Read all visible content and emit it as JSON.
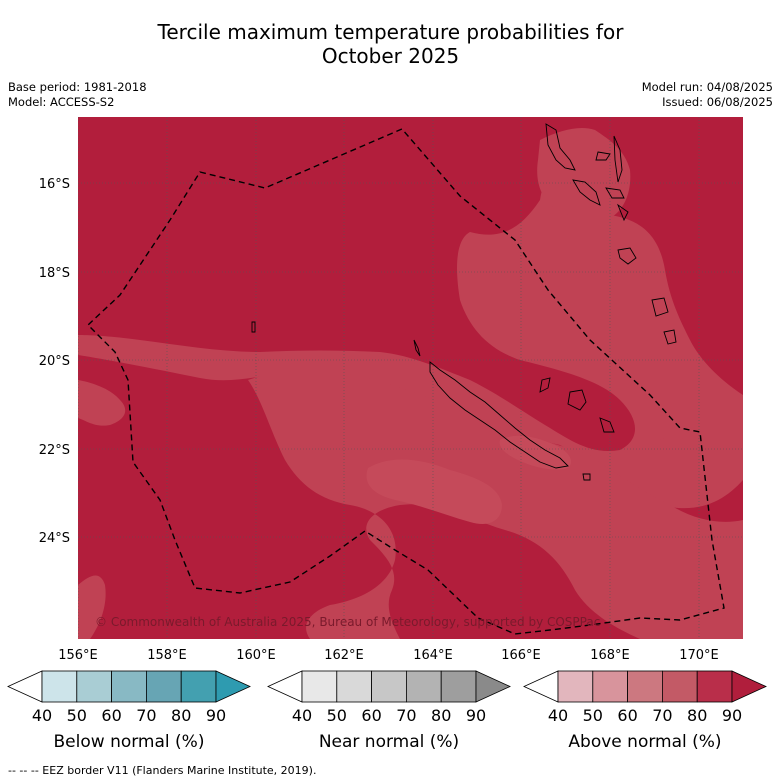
{
  "title_line1": "Tercile maximum temperature probabilities for",
  "title_line2": "October 2025",
  "base_period": "Base period: 1981-2018",
  "model": "Model: ACCESS-S2",
  "model_run": "Model run: 04/08/2025",
  "issued": "Issued: 06/08/2025",
  "copyright": "© Commonwealth of Australia 2025, Bureau of Meteorology, supported by COSPPac",
  "lat_labels": [
    "16°S",
    "18°S",
    "20°S",
    "22°S",
    "24°S"
  ],
  "lon_labels": [
    "156°E",
    "158°E",
    "160°E",
    "162°E",
    "164°E",
    "166°E",
    "168°E",
    "170°E"
  ],
  "colorbars": [
    {
      "title": "Below normal (%)",
      "ticks": [
        "40",
        "50",
        "60",
        "70",
        "80",
        "90"
      ],
      "colors": [
        "#ffffff",
        "#cde4ea",
        "#a9cdd4",
        "#88b9c4",
        "#67a5b4",
        "#43a0b0",
        "#2e9bb0"
      ]
    },
    {
      "title": "Near normal (%)",
      "ticks": [
        "40",
        "50",
        "60",
        "70",
        "80",
        "90"
      ],
      "colors": [
        "#ffffff",
        "#e8e8e8",
        "#d9d9d9",
        "#c7c7c7",
        "#b3b3b3",
        "#9e9e9e",
        "#8a8a8a"
      ]
    },
    {
      "title": "Above normal (%)",
      "ticks": [
        "40",
        "50",
        "60",
        "70",
        "80",
        "90"
      ],
      "colors": [
        "#ffffff",
        "#e2b6bd",
        "#d8949c",
        "#cc7880",
        "#c35a66",
        "#b92e4a",
        "#b01e3c"
      ]
    }
  ],
  "footer": "-- -- -- EEZ border V11 (Flanders Marine Institute, 2019).",
  "colors": {
    "above_80_90": "#b21e3c",
    "above_70_80": "#c04254"
  }
}
